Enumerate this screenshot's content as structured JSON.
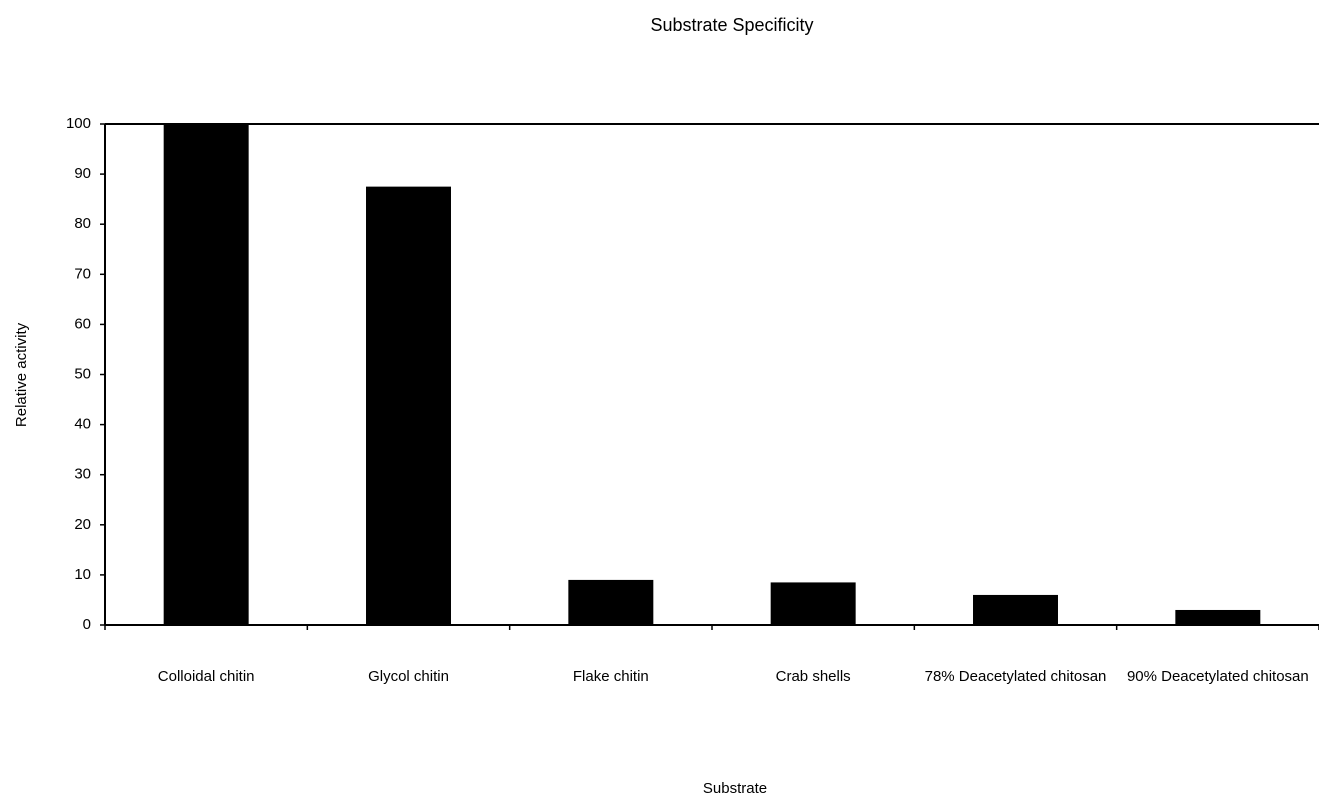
{
  "chart_data": {
    "type": "bar",
    "title": "Substrate Specificity",
    "x_label": "Substrate",
    "y_label": "Relative activity",
    "categories": [
      "Colloidal chitin",
      "Glycol chitin",
      "Flake chitin",
      "Crab shells",
      "78% Deacetylated chitosan",
      "90% Deacetylated chitosan"
    ],
    "values": [
      100,
      87.5,
      9,
      8.5,
      6,
      3
    ],
    "color": "#000000",
    "ylim": [
      0,
      100
    ],
    "yticks": [
      0,
      10,
      20,
      30,
      40,
      50,
      60,
      70,
      80,
      90,
      100
    ],
    "grid": false
  }
}
